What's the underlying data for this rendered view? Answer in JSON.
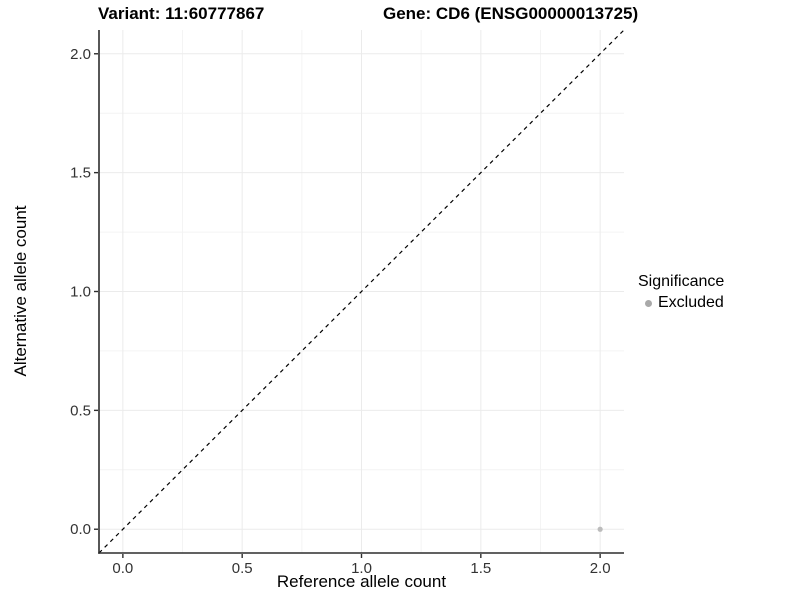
{
  "chart_data": {
    "type": "scatter",
    "titles": {
      "left": "Variant: 11:60777867",
      "right": "Gene: CD6 (ENSG00000013725)"
    },
    "xlabel": "Reference allele count",
    "ylabel": "Alternative allele count",
    "xlim": [
      -0.1,
      2.1
    ],
    "ylim": [
      -0.1,
      2.1
    ],
    "x_ticks": [
      0.0,
      0.5,
      1.0,
      1.5,
      2.0
    ],
    "y_ticks": [
      0.0,
      0.5,
      1.0,
      1.5,
      2.0
    ],
    "x_minor_ticks": [
      0.25,
      0.75,
      1.25,
      1.75
    ],
    "y_minor_ticks": [
      0.25,
      0.75,
      1.25,
      1.75
    ],
    "tick_format_decimals": 1,
    "grid": {
      "major_color": "#ebebeb",
      "minor_color": "#f4f4f4"
    },
    "axis_color": "#2d2d2d",
    "tick_label_color": "#333333",
    "reference_line": {
      "type": "identity",
      "style": "dashed",
      "color": "#000000",
      "from": [
        -0.1,
        -0.1
      ],
      "to": [
        2.1,
        2.1
      ]
    },
    "series": [
      {
        "name": "Excluded",
        "color": "#bcbcbc",
        "point_radius": 2.6,
        "points": [
          [
            2.0,
            0.0
          ]
        ]
      }
    ],
    "legend": {
      "title": "Significance",
      "position": "right",
      "entries": [
        {
          "label": "Excluded",
          "color": "#a9a9a9"
        }
      ]
    }
  }
}
